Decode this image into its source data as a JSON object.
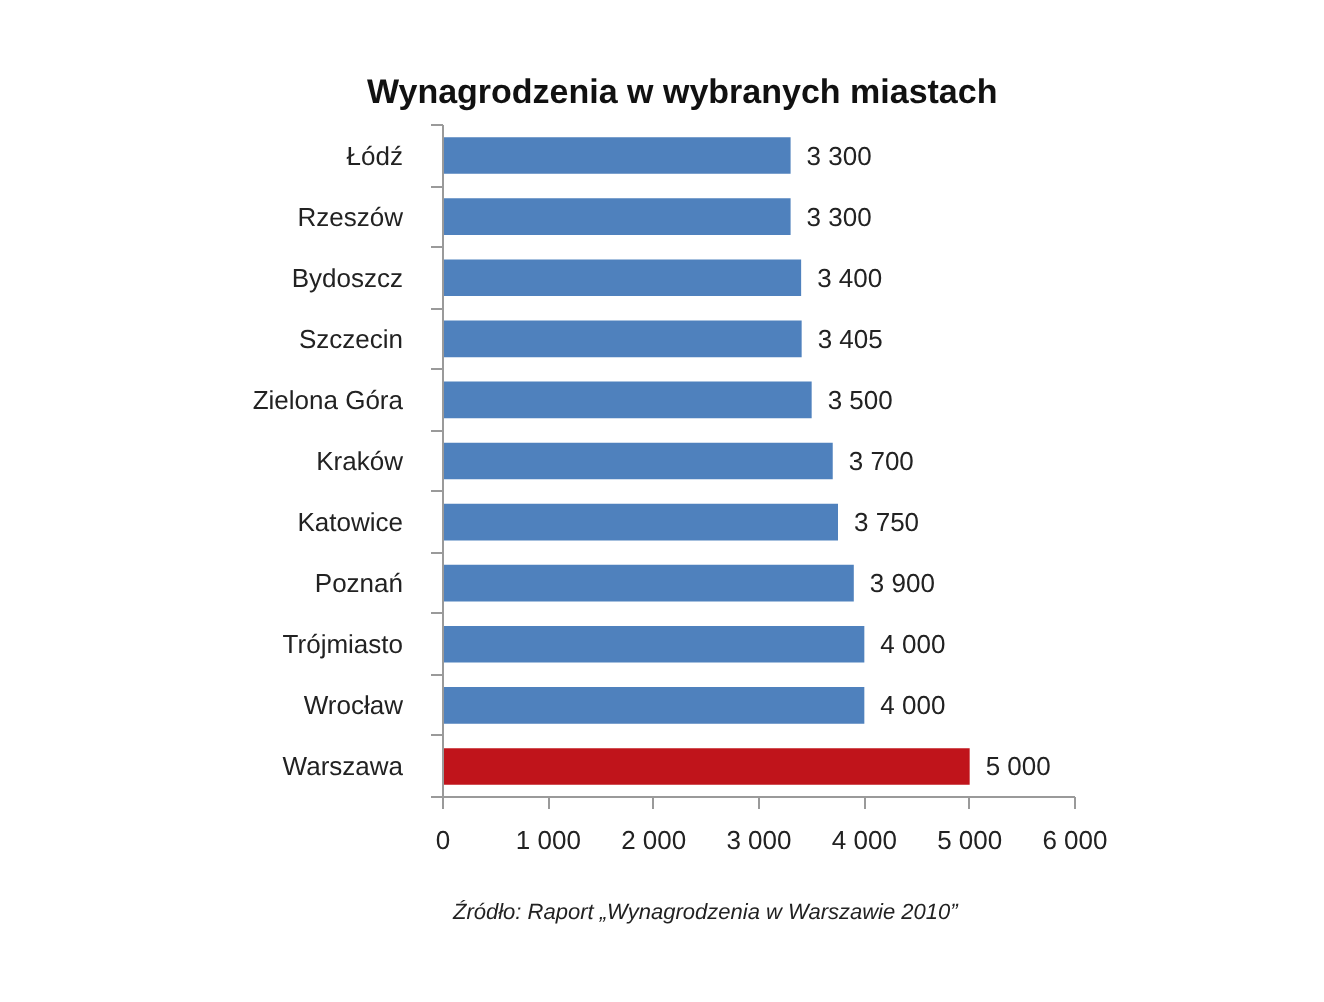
{
  "chart_data": {
    "type": "bar",
    "orientation": "horizontal",
    "title": "Wynagrodzenia w wybranych miastach",
    "categories": [
      "Łódź",
      "Rzeszów",
      "Bydoszcz",
      "Szczecin",
      "Zielona Góra",
      "Kraków",
      "Katowice",
      "Poznań",
      "Trójmiasto",
      "Wrocław",
      "Warszawa"
    ],
    "values": [
      3300,
      3300,
      3400,
      3405,
      3500,
      3700,
      3750,
      3900,
      4000,
      4000,
      5000
    ],
    "colors": [
      "#4f81bd",
      "#4f81bd",
      "#4f81bd",
      "#4f81bd",
      "#4f81bd",
      "#4f81bd",
      "#4f81bd",
      "#4f81bd",
      "#4f81bd",
      "#4f81bd",
      "#c0141b"
    ],
    "value_labels": [
      "3 300",
      "3 300",
      "3 400",
      "3 405",
      "3 500",
      "3 700",
      "3 750",
      "3 900",
      "4 000",
      "4 000",
      "5 000"
    ],
    "xlim": [
      0,
      6000
    ],
    "xticks": [
      0,
      {
        "value": 1000,
        "label": "1 000"
      },
      {
        "value": 2000,
        "label": "2 000"
      },
      {
        "value": 3000,
        "label": "3 000"
      },
      {
        "value": 4000,
        "label": "4 000"
      },
      {
        "value": 5000,
        "label": "5 000"
      },
      {
        "value": 6000,
        "label": "6 000"
      }
    ],
    "grid": false,
    "annotations": [
      "Źródło: Raport „Wynagrodzenia w Warszawie 2010”"
    ]
  }
}
